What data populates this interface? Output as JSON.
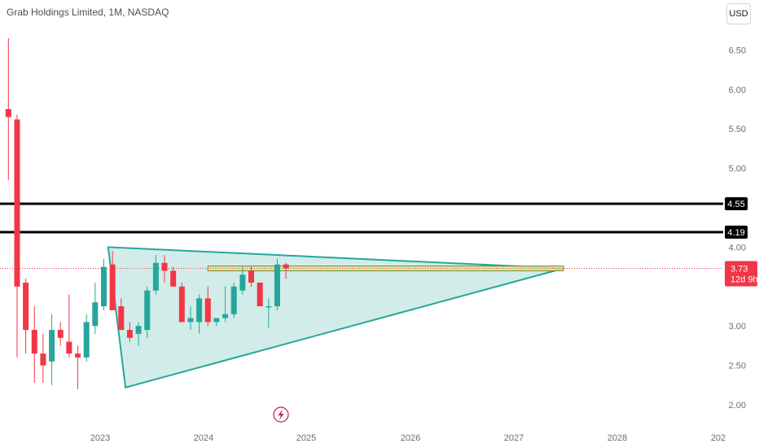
{
  "header": {
    "title": "Grab Holdings Limited, 1M, NASDAQ",
    "currency": "USD"
  },
  "colors": {
    "up": "#26a69a",
    "down": "#f23645",
    "triangle_fill": "#b2dfdb",
    "triangle_stroke": "#26a69a",
    "zone_fill": "#e8e3a8",
    "level_line": "#000000",
    "price_line": "#f23645"
  },
  "chart_data": {
    "type": "candlestick",
    "title": "Grab Holdings Limited, 1M, NASDAQ",
    "ylim": [
      1.8,
      6.9
    ],
    "y_ticks": [
      "6.50",
      "6.00",
      "5.50",
      "5.00",
      "4.00",
      "3.00",
      "2.50",
      "2.00"
    ],
    "x_ticks": [
      "2023",
      "2024",
      "2025",
      "2026",
      "2027",
      "2028",
      "202"
    ],
    "x_domain_months": [
      0,
      70
    ],
    "candles": [
      {
        "o": 5.75,
        "h": 6.65,
        "l": 4.85,
        "c": 5.65
      },
      {
        "o": 5.62,
        "h": 5.68,
        "l": 2.6,
        "c": 3.5
      },
      {
        "o": 3.55,
        "h": 3.6,
        "l": 2.65,
        "c": 2.95
      },
      {
        "o": 2.95,
        "h": 3.25,
        "l": 2.28,
        "c": 2.65
      },
      {
        "o": 2.65,
        "h": 2.9,
        "l": 2.28,
        "c": 2.5
      },
      {
        "o": 2.55,
        "h": 3.15,
        "l": 2.25,
        "c": 2.95
      },
      {
        "o": 2.95,
        "h": 3.05,
        "l": 2.75,
        "c": 2.85
      },
      {
        "o": 2.8,
        "h": 3.4,
        "l": 2.6,
        "c": 2.65
      },
      {
        "o": 2.65,
        "h": 2.75,
        "l": 2.2,
        "c": 2.6
      },
      {
        "o": 2.6,
        "h": 3.15,
        "l": 2.55,
        "c": 3.05
      },
      {
        "o": 3.0,
        "h": 3.55,
        "l": 2.9,
        "c": 3.3
      },
      {
        "o": 3.25,
        "h": 3.85,
        "l": 3.2,
        "c": 3.75
      },
      {
        "o": 3.78,
        "h": 3.95,
        "l": 3.2,
        "c": 3.2
      },
      {
        "o": 3.25,
        "h": 3.35,
        "l": 2.95,
        "c": 2.95
      },
      {
        "o": 2.95,
        "h": 3.05,
        "l": 2.8,
        "c": 2.85
      },
      {
        "o": 2.9,
        "h": 3.05,
        "l": 2.75,
        "c": 3.0
      },
      {
        "o": 2.95,
        "h": 3.5,
        "l": 2.85,
        "c": 3.45
      },
      {
        "o": 3.45,
        "h": 3.9,
        "l": 3.4,
        "c": 3.8
      },
      {
        "o": 3.8,
        "h": 3.9,
        "l": 3.55,
        "c": 3.7
      },
      {
        "o": 3.7,
        "h": 3.75,
        "l": 3.5,
        "c": 3.5
      },
      {
        "o": 3.5,
        "h": 3.55,
        "l": 3.05,
        "c": 3.05
      },
      {
        "o": 3.05,
        "h": 3.25,
        "l": 2.95,
        "c": 3.1
      },
      {
        "o": 3.05,
        "h": 3.4,
        "l": 2.9,
        "c": 3.35
      },
      {
        "o": 3.35,
        "h": 3.5,
        "l": 3.0,
        "c": 3.05
      },
      {
        "o": 3.05,
        "h": 3.1,
        "l": 3.0,
        "c": 3.1
      },
      {
        "o": 3.1,
        "h": 3.5,
        "l": 3.05,
        "c": 3.15
      },
      {
        "o": 3.15,
        "h": 3.55,
        "l": 3.1,
        "c": 3.5
      },
      {
        "o": 3.45,
        "h": 3.75,
        "l": 3.4,
        "c": 3.65
      },
      {
        "o": 3.7,
        "h": 3.75,
        "l": 3.5,
        "c": 3.55
      },
      {
        "o": 3.55,
        "h": 3.55,
        "l": 3.25,
        "c": 3.25
      },
      {
        "o": 3.25,
        "h": 3.35,
        "l": 2.98,
        "c": 3.25
      },
      {
        "o": 3.25,
        "h": 3.85,
        "l": 3.2,
        "c": 3.78
      },
      {
        "o": 3.78,
        "h": 3.8,
        "l": 3.6,
        "c": 3.73
      }
    ],
    "triangle": [
      [
        12.0,
        4.0
      ],
      [
        14.0,
        2.22
      ],
      [
        64.5,
        3.73
      ]
    ],
    "zone": {
      "x": [
        23.5,
        64.5
      ],
      "y": [
        3.7,
        3.76
      ]
    },
    "levels": [
      {
        "value": 4.55,
        "label": "4.55"
      },
      {
        "value": 4.19,
        "label": "4.19"
      }
    ],
    "last_price": {
      "value": 3.73,
      "label": "3.73",
      "countdown": "12d 9h"
    }
  }
}
